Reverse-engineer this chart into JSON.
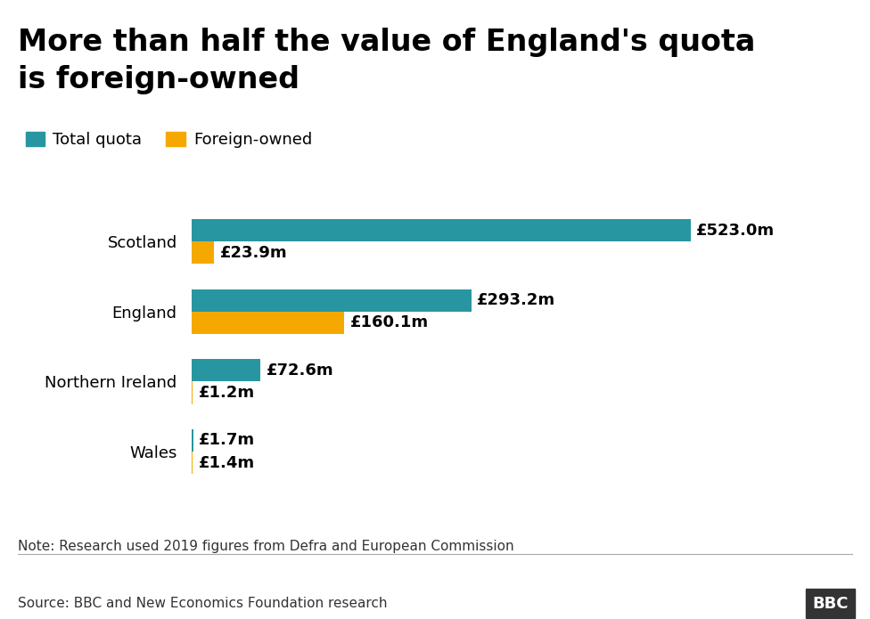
{
  "title_line1": "More than half the value of England's quota",
  "title_line2": "is foreign-owned",
  "categories": [
    "Scotland",
    "England",
    "Northern Ireland",
    "Wales"
  ],
  "total_quota": [
    523.0,
    293.2,
    72.6,
    1.7
  ],
  "foreign_owned": [
    23.9,
    160.1,
    1.2,
    1.4
  ],
  "total_labels": [
    "£523.0m",
    "£293.2m",
    "£72.6m",
    "£1.7m"
  ],
  "foreign_labels": [
    "£23.9m",
    "£160.1m",
    "£1.2m",
    "£1.4m"
  ],
  "teal_color": "#2896A0",
  "orange_color": "#F5A800",
  "legend_labels": [
    "Total quota",
    "Foreign-owned"
  ],
  "note": "Note: Research used 2019 figures from Defra and European Commission",
  "source": "Source: BBC and New Economics Foundation research",
  "bbc_logo": "BBC",
  "background_color": "#ffffff",
  "title_fontsize": 24,
  "bar_height": 0.32,
  "label_fontsize": 13,
  "legend_fontsize": 13,
  "note_fontsize": 11,
  "xlim_max": 620
}
